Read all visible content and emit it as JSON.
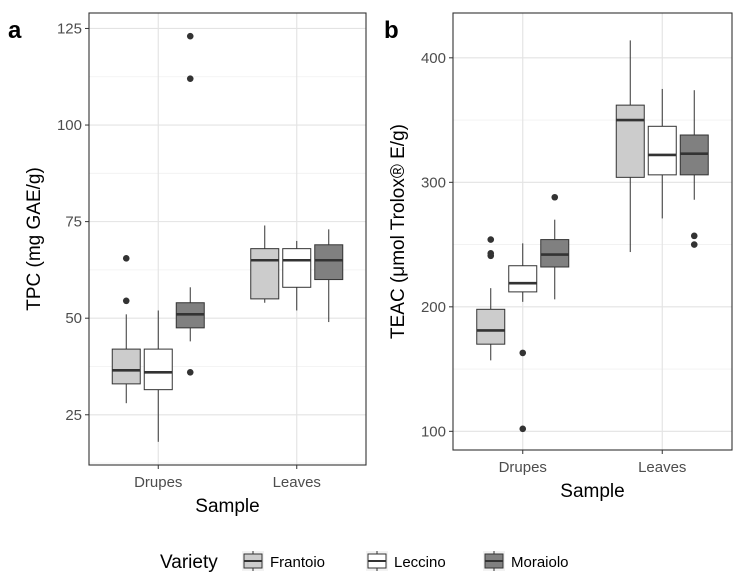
{
  "legend": {
    "title": "Variety",
    "items": [
      {
        "label": "Frantoio",
        "color": "#cccccc"
      },
      {
        "label": "Leccino",
        "color": "#ffffff"
      },
      {
        "label": "Moraiolo",
        "color": "#808080"
      }
    ]
  },
  "chart_data": [
    {
      "type": "box",
      "panel": "a",
      "xlabel": "Sample",
      "ylabel": "TPC (mg GAE/g)",
      "categories": [
        "Drupes",
        "Leaves"
      ],
      "ylim": [
        12,
        129
      ],
      "yticks": [
        25,
        50,
        75,
        100,
        125
      ],
      "grid": true,
      "series": [
        {
          "name": "Frantoio",
          "color": "#cccccc",
          "boxes": [
            {
              "min": 28,
              "q1": 33,
              "median": 36.5,
              "q3": 42,
              "max": 51,
              "outliers": [
                54.5,
                65.5
              ]
            },
            {
              "min": 54,
              "q1": 55,
              "median": 65,
              "q3": 68,
              "max": 74,
              "outliers": []
            }
          ]
        },
        {
          "name": "Leccino",
          "color": "#ffffff",
          "boxes": [
            {
              "min": 18,
              "q1": 31.5,
              "median": 36,
              "q3": 42,
              "max": 52,
              "outliers": []
            },
            {
              "min": 52,
              "q1": 58,
              "median": 65,
              "q3": 68,
              "max": 70,
              "outliers": []
            }
          ]
        },
        {
          "name": "Moraiolo",
          "color": "#808080",
          "boxes": [
            {
              "min": 44,
              "q1": 47.5,
              "median": 51,
              "q3": 54,
              "max": 58,
              "outliers": [
                36,
                112,
                123
              ]
            },
            {
              "min": 49,
              "q1": 60,
              "median": 65,
              "q3": 69,
              "max": 73,
              "outliers": []
            }
          ]
        }
      ]
    },
    {
      "type": "box",
      "panel": "b",
      "xlabel": "Sample",
      "ylabel": "TEAC (μmol Trolox® E/g)",
      "categories": [
        "Drupes",
        "Leaves"
      ],
      "ylim": [
        85,
        436
      ],
      "yticks": [
        100,
        200,
        300,
        400
      ],
      "grid": true,
      "series": [
        {
          "name": "Frantoio",
          "color": "#cccccc",
          "boxes": [
            {
              "min": 157,
              "q1": 170,
              "median": 181,
              "q3": 198,
              "max": 215,
              "outliers": [
                241,
                243,
                254
              ]
            },
            {
              "min": 244,
              "q1": 304,
              "median": 350,
              "q3": 362,
              "max": 414,
              "outliers": []
            }
          ]
        },
        {
          "name": "Leccino",
          "color": "#ffffff",
          "boxes": [
            {
              "min": 204,
              "q1": 212,
              "median": 219,
              "q3": 233,
              "max": 251,
              "outliers": [
                102,
                163
              ]
            },
            {
              "min": 271,
              "q1": 306,
              "median": 322,
              "q3": 345,
              "max": 375,
              "outliers": []
            }
          ]
        },
        {
          "name": "Moraiolo",
          "color": "#808080",
          "boxes": [
            {
              "min": 206,
              "q1": 232,
              "median": 242,
              "q3": 254,
              "max": 270,
              "outliers": [
                288
              ]
            },
            {
              "min": 286,
              "q1": 306,
              "median": 323,
              "q3": 338,
              "max": 374,
              "outliers": [
                250,
                257
              ]
            }
          ]
        }
      ]
    }
  ]
}
